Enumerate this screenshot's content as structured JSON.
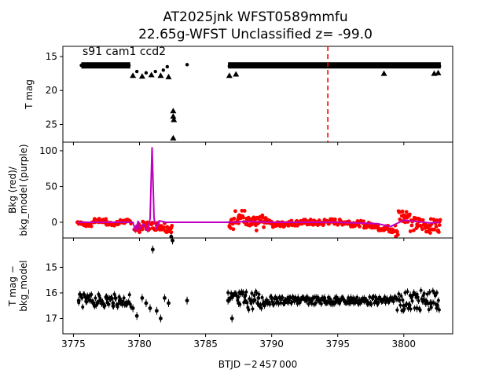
{
  "title_line1": "AT2025jnk  WFST0589mmfu",
  "title_line2": "22.65g-WFST Unclassified z= -99.0",
  "xlabel": "BTJD −2 457 000",
  "chart_data": [
    {
      "type": "scatter",
      "panel": "top",
      "ylabel": "T mag",
      "annotation": "s91 cam1 ccd2",
      "x_range": [
        3774.2,
        3803.7
      ],
      "ylim": [
        27.6,
        13.5
      ],
      "yticks": [
        15,
        20,
        25
      ],
      "marker_line": {
        "x": 3794.25,
        "color": "#ff0000",
        "style": "dashed"
      },
      "series": [
        {
          "values_desc": "flux points",
          "points": [
            [
              3775.6,
              16.3
            ],
            [
              3776.5,
              16.4
            ],
            [
              3777.5,
              16.3
            ],
            [
              3778.5,
              16.4
            ],
            [
              3779.2,
              16.3
            ],
            [
              3779.8,
              17.2
            ],
            [
              3780.5,
              17.4
            ],
            [
              3781.2,
              17.2
            ],
            [
              3781.8,
              17.0
            ],
            [
              3782.1,
              16.5
            ],
            [
              3783.6,
              16.2
            ],
            [
              3786.8,
              16.4
            ],
            [
              3788,
              16.2
            ],
            [
              3789,
              16.3
            ],
            [
              3790,
              16.3
            ],
            [
              3791,
              16.3
            ],
            [
              3792,
              16.3
            ],
            [
              3793,
              16.3
            ],
            [
              3794,
              16.3
            ],
            [
              3795,
              16.3
            ],
            [
              3796,
              16.3
            ],
            [
              3797,
              16.3
            ],
            [
              3798,
              16.3
            ],
            [
              3799,
              16.3
            ],
            [
              3800,
              16.3
            ],
            [
              3801,
              16.3
            ],
            [
              3802,
              16.3
            ],
            [
              3802.7,
              16.4
            ]
          ]
        },
        {
          "values_desc": "upper limits (triangles)",
          "points": [
            [
              3779.5,
              17.8
            ],
            [
              3780.2,
              17.9
            ],
            [
              3780.9,
              17.7
            ],
            [
              3781.6,
              17.8
            ],
            [
              3782.2,
              18.0
            ],
            [
              3782.55,
              23.0
            ],
            [
              3782.55,
              23.8
            ],
            [
              3782.6,
              24.3
            ],
            [
              3782.55,
              27.0
            ],
            [
              3786.8,
              17.8
            ],
            [
              3787.3,
              17.6
            ],
            [
              3798.5,
              17.5
            ],
            [
              3802.3,
              17.5
            ],
            [
              3802.6,
              17.4
            ]
          ]
        }
      ]
    },
    {
      "type": "line",
      "panel": "middle",
      "ylabel": "Bkg (red)/ bkg_model (purple)",
      "x_range": [
        3774.2,
        3803.7
      ],
      "ylim": [
        -22,
        112
      ],
      "yticks": [
        0,
        50,
        100
      ],
      "series": [
        {
          "values_desc": "Bkg (red points)",
          "color": "#ff0000",
          "points": [
            [
              3775.3,
              0
            ],
            [
              3776,
              -3
            ],
            [
              3777,
              2
            ],
            [
              3778,
              -2
            ],
            [
              3779,
              1
            ],
            [
              3779.8,
              -8
            ],
            [
              3780.5,
              -5
            ],
            [
              3781.5,
              -5
            ],
            [
              3782.4,
              -8
            ],
            [
              3786.8,
              -5
            ],
            [
              3787.5,
              8
            ],
            [
              3788.5,
              -3
            ],
            [
              3789.5,
              2
            ],
            [
              3790.5,
              -3
            ],
            [
              3791.5,
              -1
            ],
            [
              3792.5,
              0
            ],
            [
              3793.5,
              -1
            ],
            [
              3794.5,
              1
            ],
            [
              3795.5,
              0
            ],
            [
              3796.5,
              -2
            ],
            [
              3797.5,
              -4
            ],
            [
              3798.5,
              -8
            ],
            [
              3799.2,
              -12
            ],
            [
              3800,
              10
            ],
            [
              3801,
              -3
            ],
            [
              3802,
              -5
            ],
            [
              3802.7,
              -4
            ]
          ]
        },
        {
          "values_desc": "bkg_model (purple line)",
          "color": "#c000c0",
          "points": [
            [
              3775.3,
              0
            ],
            [
              3779.5,
              0
            ],
            [
              3779.7,
              -12
            ],
            [
              3779.9,
              2
            ],
            [
              3780.0,
              -10
            ],
            [
              3780.3,
              -2
            ],
            [
              3780.6,
              -12
            ],
            [
              3780.8,
              5
            ],
            [
              3780.95,
              105
            ],
            [
              3781.1,
              5
            ],
            [
              3781.3,
              -8
            ],
            [
              3781.5,
              2
            ],
            [
              3782,
              0
            ],
            [
              3787,
              0
            ],
            [
              3788,
              1
            ],
            [
              3790,
              0
            ],
            [
              3795,
              0
            ],
            [
              3798,
              -2
            ],
            [
              3799,
              -6
            ],
            [
              3800,
              3
            ],
            [
              3801,
              1
            ],
            [
              3802,
              -1
            ],
            [
              3802.7,
              0
            ]
          ]
        }
      ]
    },
    {
      "type": "scatter",
      "panel": "bottom",
      "ylabel": "T mag − bkg_model",
      "x_range": [
        3774.2,
        3803.7
      ],
      "ylim": [
        17.6,
        13.85
      ],
      "yticks": [
        15,
        16,
        17
      ],
      "xticks": [
        3775,
        3780,
        3785,
        3790,
        3795,
        3800
      ],
      "series": [
        {
          "values_desc": "difference mag points",
          "color": "#000000",
          "points": [
            [
              3775.4,
              16.3
            ],
            [
              3776,
              16.2
            ],
            [
              3776.5,
              16.4
            ],
            [
              3777,
              16.3
            ],
            [
              3777.5,
              16.2
            ],
            [
              3778,
              16.4
            ],
            [
              3778.5,
              16.3
            ],
            [
              3779,
              16.4
            ],
            [
              3779.5,
              16.6
            ],
            [
              3779.8,
              16.9
            ],
            [
              3780.2,
              16.2
            ],
            [
              3780.5,
              16.4
            ],
            [
              3780.8,
              16.6
            ],
            [
              3781,
              14.3
            ],
            [
              3781.3,
              16.7
            ],
            [
              3781.6,
              17.0
            ],
            [
              3781.9,
              16.2
            ],
            [
              3782.2,
              16.4
            ],
            [
              3782.4,
              13.8
            ],
            [
              3782.5,
              13.95
            ],
            [
              3783.6,
              16.3
            ],
            [
              3786.7,
              16.3
            ],
            [
              3787,
              17.0
            ],
            [
              3787.5,
              16.4
            ],
            [
              3788,
              16.1
            ],
            [
              3788.5,
              16.3
            ],
            [
              3789,
              16.2
            ],
            [
              3789.5,
              16.4
            ],
            [
              3790,
              16.2
            ],
            [
              3791,
              16.3
            ],
            [
              3792,
              16.2
            ],
            [
              3793,
              16.3
            ],
            [
              3794,
              16.2
            ],
            [
              3795,
              16.3
            ],
            [
              3796,
              16.2
            ],
            [
              3797,
              16.3
            ],
            [
              3798,
              16.4
            ],
            [
              3799,
              16.2
            ],
            [
              3800,
              16.5
            ],
            [
              3800.5,
              16.1
            ],
            [
              3801,
              16.6
            ],
            [
              3801.5,
              16.3
            ],
            [
              3802,
              16.4
            ],
            [
              3802.5,
              16.6
            ]
          ]
        }
      ]
    }
  ]
}
